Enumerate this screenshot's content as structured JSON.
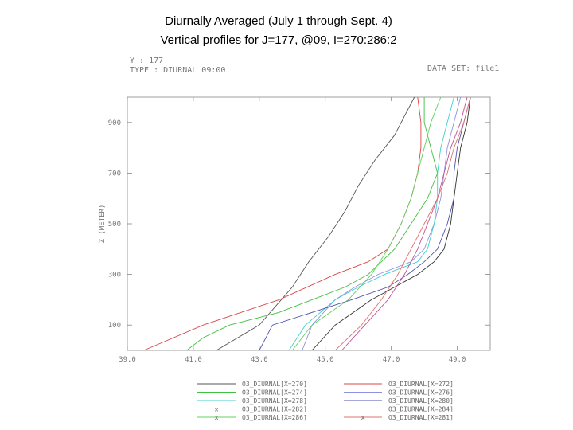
{
  "title_line1": "Diurnally Averaged (July 1 through Sept. 4)",
  "title_line2": "Vertical profiles for J=177, @09, I=270:286:2",
  "header": {
    "left1": "Y : 177",
    "left2": "TYPE : DIURNAL 09:00",
    "right_small": "",
    "right": "DATA SET: file1"
  },
  "chart_data": {
    "type": "line",
    "title": "Diurnally Averaged (July 1 through Sept. 4)",
    "subtitle": "Vertical profiles for J=177, @09, I=270:286:2",
    "xlabel": "",
    "ylabel": "Z (METER)",
    "xlim": [
      39.0,
      50.0
    ],
    "ylim": [
      0,
      1000
    ],
    "xticks": [
      "39.0",
      "41.0",
      "43.0",
      "45.0",
      "47.0",
      "49.0"
    ],
    "xtick_values": [
      39,
      41,
      43,
      45,
      47,
      49
    ],
    "yticks": [
      "100",
      "300",
      "500",
      "700",
      "900"
    ],
    "ytick_values": [
      100,
      300,
      500,
      700,
      900
    ],
    "grid": false,
    "legend_placement": "bottom",
    "series": [
      {
        "name": "O3_DIURNAL[X=270]",
        "color": "#555555",
        "z": [
          0,
          100,
          250,
          350,
          450,
          550,
          650,
          750,
          850,
          950,
          1000
        ],
        "x": [
          41.7,
          43.0,
          44.0,
          44.5,
          45.1,
          45.6,
          46.0,
          46.5,
          47.1,
          47.5,
          47.7
        ]
      },
      {
        "name": "O3_DIURNAL[X=272]",
        "color": "#d84848",
        "z": [
          0,
          100,
          200,
          300,
          350,
          400,
          500,
          600,
          700,
          800,
          900,
          1000
        ],
        "x": [
          39.5,
          41.3,
          43.6,
          45.3,
          46.3,
          46.9,
          47.3,
          47.6,
          47.8,
          47.9,
          47.9,
          47.8
        ]
      },
      {
        "name": "O3_DIURNAL[X=274]",
        "color": "#40c040",
        "z": [
          0,
          50,
          100,
          150,
          200,
          250,
          300,
          350,
          400,
          500,
          600,
          700,
          800,
          900,
          1000
        ],
        "x": [
          40.8,
          41.3,
          42.1,
          43.6,
          44.6,
          45.6,
          46.3,
          46.7,
          47.1,
          47.6,
          48.1,
          48.4,
          48.2,
          48.0,
          48.0
        ]
      },
      {
        "name": "O3_DIURNAL[X=276]",
        "color": "#9090e0",
        "z": [
          0,
          100,
          200,
          250,
          300,
          350,
          400,
          500,
          600,
          700,
          800,
          900,
          1000
        ],
        "x": [
          44.3,
          44.6,
          45.3,
          45.9,
          46.6,
          47.6,
          48.0,
          48.3,
          48.5,
          48.6,
          48.7,
          48.9,
          49.1
        ]
      },
      {
        "name": "O3_DIURNAL[X=278]",
        "color": "#40d0d0",
        "z": [
          0,
          100,
          200,
          250,
          300,
          350,
          400,
          500,
          600,
          700,
          800,
          900,
          1000
        ],
        "x": [
          43.9,
          44.4,
          45.3,
          46.0,
          46.8,
          47.8,
          48.1,
          48.3,
          48.4,
          48.4,
          48.5,
          48.7,
          48.9
        ]
      },
      {
        "name": "O3_DIURNAL[X=280]",
        "color": "#5050b0",
        "z": [
          0,
          100,
          200,
          250,
          300,
          350,
          400,
          500,
          600,
          700,
          800,
          900,
          1000
        ],
        "x": [
          43.0,
          43.4,
          45.8,
          46.9,
          47.5,
          48.0,
          48.4,
          48.7,
          48.9,
          48.9,
          49.0,
          49.2,
          49.4
        ]
      },
      {
        "name": "O3_DIURNAL[X=282]",
        "color": "#333333",
        "z": [
          0,
          100,
          200,
          250,
          300,
          350,
          400,
          500,
          600,
          700,
          800,
          900,
          1000
        ],
        "x": [
          44.6,
          45.3,
          46.4,
          47.1,
          47.8,
          48.3,
          48.6,
          48.8,
          48.9,
          49.0,
          49.1,
          49.3,
          49.4
        ]
      },
      {
        "name": "O3_DIURNAL[X=284]",
        "color": "#c05090",
        "z": [
          0,
          100,
          200,
          300,
          400,
          500,
          600,
          700,
          800,
          900,
          1000
        ],
        "x": [
          45.5,
          46.2,
          46.9,
          47.4,
          47.8,
          48.1,
          48.4,
          48.6,
          48.8,
          49.1,
          49.3
        ]
      },
      {
        "name": "O3_DIURNAL[X=286]",
        "color": "#60d060",
        "z": [
          0,
          100,
          200,
          300,
          400,
          500,
          600,
          700,
          800,
          900,
          1000
        ],
        "x": [
          44.0,
          44.6,
          45.7,
          46.4,
          46.9,
          47.3,
          47.6,
          47.8,
          48.0,
          48.2,
          48.5
        ]
      },
      {
        "name": "O3_DIURNAL[X=281]",
        "color": "#e07070",
        "z": [
          0,
          100,
          200,
          300,
          400,
          500,
          600,
          700,
          800,
          900,
          1000
        ],
        "x": [
          45.3,
          46.1,
          46.7,
          47.2,
          47.6,
          48.0,
          48.4,
          48.7,
          48.9,
          49.2,
          49.4
        ]
      }
    ],
    "legend_left": [
      {
        "label": "O3_DIURNAL[X=270]",
        "color": "#555555",
        "marker": ""
      },
      {
        "label": "O3_DIURNAL[X=274]",
        "color": "#40c040",
        "marker": ""
      },
      {
        "label": "O3_DIURNAL[X=278]",
        "color": "#40d0d0",
        "marker": ""
      },
      {
        "label": "O3_DIURNAL[X=282]",
        "color": "#333333",
        "marker": "x"
      },
      {
        "label": "O3_DIURNAL[X=286]",
        "color": "#60d060",
        "marker": "x"
      }
    ],
    "legend_right": [
      {
        "label": "O3_DIURNAL[X=272]",
        "color": "#d84848",
        "marker": ""
      },
      {
        "label": "O3_DIURNAL[X=276]",
        "color": "#9090e0",
        "marker": ""
      },
      {
        "label": "O3_DIURNAL[X=280]",
        "color": "#5050b0",
        "marker": ""
      },
      {
        "label": "O3_DIURNAL[X=284]",
        "color": "#c05090",
        "marker": ""
      },
      {
        "label": "O3_DIURNAL[X=281]",
        "color": "#e07070",
        "marker": "x"
      }
    ]
  }
}
